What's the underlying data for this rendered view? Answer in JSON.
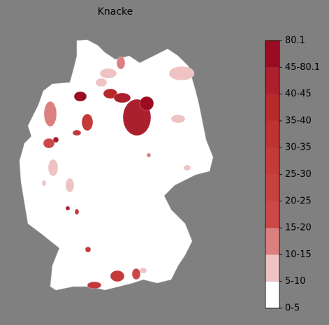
{
  "title": "Knacke",
  "legend": {
    "labels": [
      "0-5",
      "5-10",
      "10-15",
      "15-20",
      "20-25",
      "25-30",
      "30-35",
      "35-40",
      "40-45",
      "45-80.1",
      "80.1"
    ],
    "colors": [
      "#ffffff",
      "#efc3c3",
      "#dc7f7f",
      "#cc4848",
      "#c84141",
      "#c43a3a",
      "#be3232",
      "#b72a2c",
      "#ac1f2d",
      "#9b0c22"
    ]
  }
}
